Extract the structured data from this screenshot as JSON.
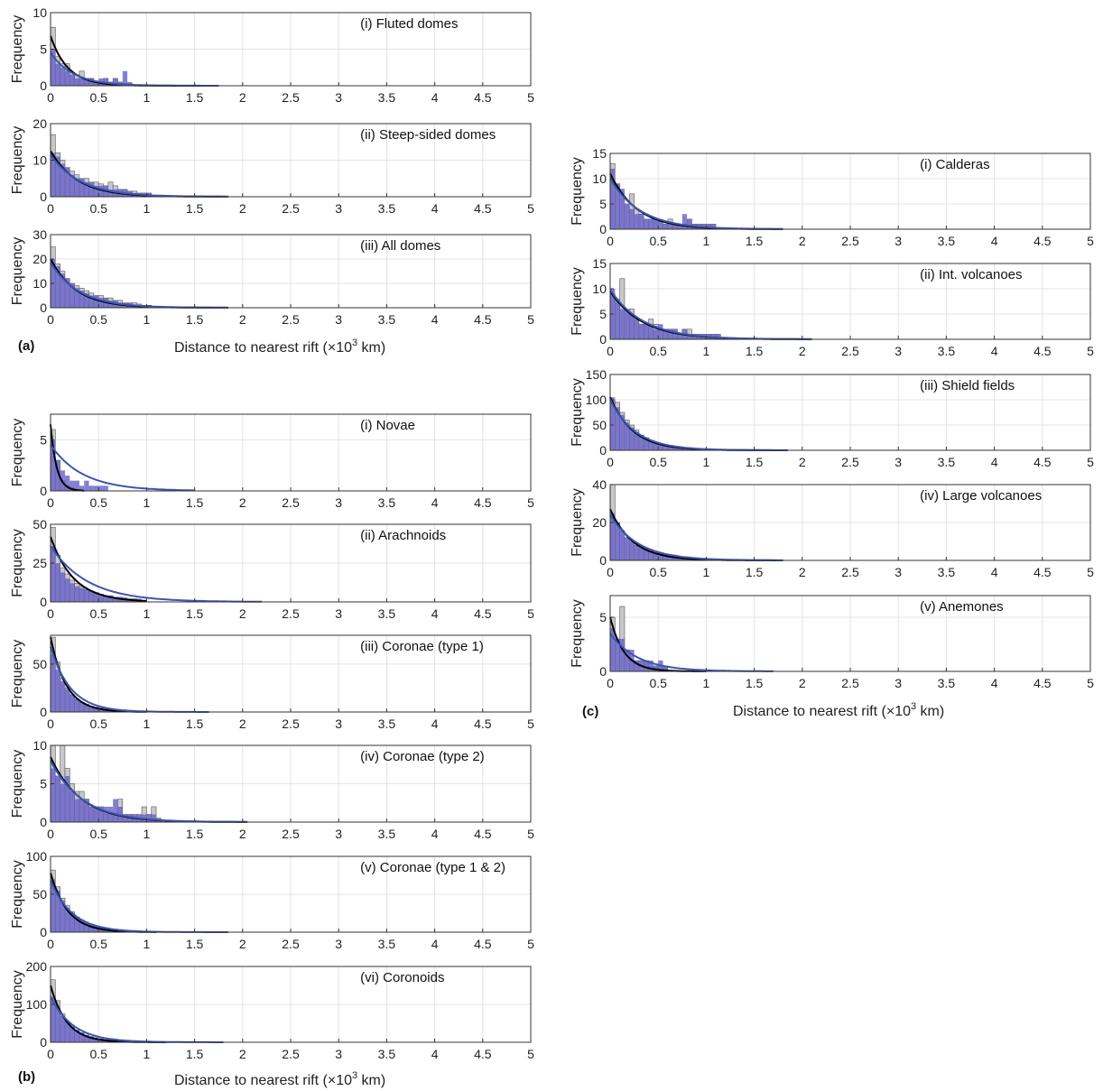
{
  "figure": {
    "panel_labels": [
      "(a)",
      "(b)",
      "(c)"
    ],
    "xlabel_text": "Distance to nearest rift (×10",
    "xlabel_sup": "3",
    "xlabel_end": " km)"
  },
  "colors": {
    "observed_bars": "#c8c8cc",
    "observed_bar_edge": "#555555",
    "model_bars": "#6a63c9",
    "observed_fit": "#000000",
    "model_fit": "#3d55b0"
  },
  "chart_data": [
    {
      "type": "bar",
      "group": "(a)",
      "title": "(i) Fluted domes",
      "ylabel": "Frequency",
      "xlim": [
        0,
        5
      ],
      "ylim": [
        0,
        10
      ],
      "yticks": [
        0,
        5,
        10
      ],
      "bin_width": 0.05,
      "observed": [
        8,
        4,
        3,
        3,
        1.5,
        1.5,
        2,
        1,
        1,
        0.5,
        0.5,
        1,
        0.5,
        1,
        0.5,
        0.3,
        0.3
      ],
      "model": [
        5,
        3,
        2.5,
        2,
        1.5,
        1,
        1,
        1,
        1,
        0.5,
        1,
        1,
        0.5,
        1,
        0.5,
        2,
        0.5
      ],
      "fit_observed": {
        "a": 6.8,
        "b": 5.6,
        "xmax": 1.75
      },
      "fit_model": {
        "a": 4.5,
        "b": 4.2,
        "xmax": 1.75
      }
    },
    {
      "type": "bar",
      "group": "(a)",
      "title": "(ii) Steep-sided domes",
      "ylabel": "Frequency",
      "xlim": [
        0,
        5
      ],
      "ylim": [
        0,
        20
      ],
      "yticks": [
        0,
        10,
        20
      ],
      "bin_width": 0.05,
      "observed": [
        17,
        12,
        10,
        8,
        7,
        6,
        5,
        5,
        4,
        4,
        3.5,
        3,
        4,
        3,
        2,
        2,
        1.5,
        1.5,
        1,
        1,
        1
      ],
      "model": [
        12,
        11,
        9,
        8,
        6,
        5,
        5,
        4,
        4,
        3,
        3,
        3,
        2,
        2,
        2,
        2,
        1.5,
        1,
        1,
        1,
        1
      ],
      "fit_observed": {
        "a": 12.5,
        "b": 3.6,
        "xmax": 1.85
      },
      "fit_model": {
        "a": 11.5,
        "b": 3.2,
        "xmax": 1.85
      }
    },
    {
      "type": "bar",
      "group": "(a)",
      "title": "(iii) All domes",
      "ylabel": "Frequency",
      "xlim": [
        0,
        5
      ],
      "ylim": [
        0,
        30
      ],
      "yticks": [
        0,
        10,
        20,
        30
      ],
      "bin_width": 0.05,
      "observed": [
        25,
        18,
        15,
        12,
        10,
        9,
        8,
        7,
        6,
        5,
        5,
        4,
        4,
        3,
        3,
        2,
        2,
        2,
        1.5,
        1,
        1
      ],
      "model": [
        20,
        17,
        14,
        12,
        10,
        8,
        7,
        6,
        5,
        5,
        4,
        4,
        3,
        3,
        2,
        2,
        2,
        1,
        1,
        1,
        1
      ],
      "fit_observed": {
        "a": 20,
        "b": 3.8,
        "xmax": 1.85
      },
      "fit_model": {
        "a": 18.5,
        "b": 3.4,
        "xmax": 1.85
      }
    },
    {
      "type": "bar",
      "group": "(b)",
      "title": "(i) Novae",
      "ylabel": "Frequency",
      "xlim": [
        0,
        5
      ],
      "ylim": [
        0,
        7.5
      ],
      "yticks": [
        0,
        5
      ],
      "bin_width": 0.05,
      "observed": [
        6,
        3,
        1,
        0.5,
        0.3
      ],
      "model": [
        5,
        3,
        2,
        1.5,
        1,
        1,
        0.5,
        1,
        0.5,
        0.5,
        0.5,
        0.5
      ],
      "fit_observed": {
        "a": 6.5,
        "b": 16,
        "xmax": 0.35
      },
      "fit_model": {
        "a": 4.5,
        "b": 3,
        "xmax": 1.5
      }
    },
    {
      "type": "bar",
      "group": "(b)",
      "title": "(ii) Arachnoids",
      "ylabel": "Frequency",
      "xlim": [
        0,
        5
      ],
      "ylim": [
        0,
        50
      ],
      "yticks": [
        0,
        25,
        50
      ],
      "bin_width": 0.05,
      "observed": [
        48,
        30,
        22,
        18,
        14,
        12,
        10,
        8,
        7,
        6,
        5,
        4,
        4,
        3,
        3,
        2,
        2,
        2,
        1,
        1
      ],
      "model": [
        36,
        25,
        19,
        15,
        12,
        10,
        9,
        8,
        7,
        6,
        5,
        4,
        4,
        3,
        3,
        3,
        2,
        2,
        2,
        1
      ],
      "fit_observed": {
        "a": 42,
        "b": 4.2,
        "xmax": 1.0
      },
      "fit_model": {
        "a": 36,
        "b": 2.6,
        "xmax": 2.2
      }
    },
    {
      "type": "bar",
      "group": "(b)",
      "title": "(iii) Coronae (type 1)",
      "ylabel": "Frequency",
      "xlim": [
        0,
        5
      ],
      "ylim": [
        0,
        80
      ],
      "yticks": [
        0,
        50
      ],
      "bin_width": 0.05,
      "observed": [
        78,
        52,
        35,
        25,
        18,
        13,
        10,
        8,
        6,
        5,
        4,
        3,
        2,
        2,
        2,
        1
      ],
      "model": [
        60,
        44,
        32,
        24,
        18,
        14,
        10,
        8,
        6,
        5,
        4,
        3,
        3,
        2,
        2,
        1
      ],
      "fit_observed": {
        "a": 78,
        "b": 6.2,
        "xmax": 1.0
      },
      "fit_model": {
        "a": 68,
        "b": 4.8,
        "xmax": 1.65
      }
    },
    {
      "type": "bar",
      "group": "(b)",
      "title": "(iv) Coronae (type 2)",
      "ylabel": "Frequency",
      "xlim": [
        0,
        5
      ],
      "ylim": [
        0,
        10
      ],
      "yticks": [
        0,
        5,
        10
      ],
      "bin_width": 0.05,
      "observed": [
        10,
        6,
        10,
        7,
        5,
        4,
        4,
        3,
        2,
        2,
        2,
        1,
        1,
        1,
        3,
        1,
        1,
        1,
        1,
        2,
        1,
        2,
        0.5
      ],
      "model": [
        7,
        6,
        5,
        6,
        4,
        3,
        3,
        3,
        2,
        2,
        2,
        2,
        2,
        3,
        2,
        1,
        1,
        1,
        1,
        1,
        1,
        1,
        0.5
      ],
      "fit_observed": {
        "a": 8.5,
        "b": 3.2,
        "xmax": 2.05
      },
      "fit_model": {
        "a": 8.0,
        "b": 3.0,
        "xmax": 2.05
      }
    },
    {
      "type": "bar",
      "group": "(b)",
      "title": "(v) Coronae (type 1 & 2)",
      "ylabel": "Frequency",
      "xlim": [
        0,
        5
      ],
      "ylim": [
        0,
        100
      ],
      "yticks": [
        0,
        50,
        100
      ],
      "bin_width": 0.05,
      "observed": [
        82,
        60,
        45,
        35,
        27,
        20,
        16,
        12,
        10,
        8,
        6,
        5,
        4,
        3,
        3,
        2,
        2,
        2,
        1,
        1
      ],
      "model": [
        70,
        55,
        42,
        32,
        25,
        20,
        16,
        12,
        10,
        8,
        6,
        5,
        4,
        4,
        3,
        3,
        2,
        2,
        1,
        1
      ],
      "fit_observed": {
        "a": 78,
        "b": 5.6,
        "xmax": 1.1
      },
      "fit_model": {
        "a": 68,
        "b": 4.4,
        "xmax": 1.85
      }
    },
    {
      "type": "bar",
      "group": "(b)",
      "title": "(vi) Coronoids",
      "ylabel": "Frequency",
      "xlim": [
        0,
        5
      ],
      "ylim": [
        0,
        200
      ],
      "yticks": [
        0,
        100,
        200
      ],
      "bin_width": 0.05,
      "observed": [
        165,
        110,
        75,
        55,
        40,
        30,
        24,
        18,
        14,
        11,
        9,
        7,
        6,
        5,
        4,
        3,
        3,
        2,
        2,
        1
      ],
      "model": [
        120,
        90,
        70,
        55,
        42,
        33,
        26,
        20,
        16,
        13,
        10,
        8,
        7,
        6,
        5,
        4,
        3,
        3,
        2,
        2
      ],
      "fit_observed": {
        "a": 150,
        "b": 6.0,
        "xmax": 1.2
      },
      "fit_model": {
        "a": 120,
        "b": 4.2,
        "xmax": 1.8
      }
    },
    {
      "type": "bar",
      "group": "(c)",
      "title": "(i) Calderas",
      "ylabel": "Frequency",
      "xlim": [
        0,
        5
      ],
      "ylim": [
        0,
        15
      ],
      "yticks": [
        0,
        5,
        10,
        15
      ],
      "bin_width": 0.05,
      "observed": [
        13,
        9,
        6,
        5,
        7,
        4,
        3,
        2,
        2,
        1.5,
        1.5,
        1,
        2,
        1,
        1,
        1,
        2,
        1,
        1,
        1,
        1,
        1
      ],
      "model": [
        12,
        9,
        8,
        5,
        4,
        3,
        3,
        2,
        2,
        2,
        2,
        1,
        1,
        1,
        1,
        3,
        2,
        1,
        1,
        1,
        1,
        1
      ],
      "fit_observed": {
        "a": 11,
        "b": 3.6,
        "xmax": 1.8
      },
      "fit_model": {
        "a": 10,
        "b": 3.2,
        "xmax": 1.8
      }
    },
    {
      "type": "bar",
      "group": "(c)",
      "title": "(ii) Int. volcanoes",
      "ylabel": "Frequency",
      "xlim": [
        0,
        5
      ],
      "ylim": [
        0,
        15
      ],
      "yticks": [
        0,
        5,
        10,
        15
      ],
      "bin_width": 0.05,
      "observed": [
        9,
        7,
        12,
        5,
        6,
        4,
        3,
        3,
        4,
        3,
        2,
        2,
        2,
        2,
        1,
        2,
        2,
        1,
        1,
        1,
        1,
        1,
        1
      ],
      "model": [
        10,
        8,
        6,
        6,
        5,
        4,
        3,
        3,
        3,
        2,
        3,
        2,
        2,
        2,
        1,
        2,
        1,
        1,
        1,
        1,
        1,
        1,
        1
      ],
      "fit_observed": {
        "a": 9.5,
        "b": 3.0,
        "xmax": 2.1
      },
      "fit_model": {
        "a": 9.8,
        "b": 2.9,
        "xmax": 2.1
      }
    },
    {
      "type": "bar",
      "group": "(c)",
      "title": "(iii) Shield fields",
      "ylabel": "Frequency",
      "xlim": [
        0,
        5
      ],
      "ylim": [
        0,
        150
      ],
      "yticks": [
        0,
        50,
        100,
        150
      ],
      "bin_width": 0.05,
      "observed": [
        100,
        95,
        75,
        60,
        50,
        40,
        30,
        25,
        20,
        16,
        12,
        10,
        8,
        6,
        5,
        4,
        3,
        3,
        2,
        2
      ],
      "model": [
        105,
        85,
        70,
        55,
        45,
        36,
        28,
        22,
        18,
        14,
        11,
        9,
        7,
        6,
        5,
        4,
        3,
        3,
        2,
        2
      ],
      "fit_observed": {
        "a": 105,
        "b": 4.2,
        "xmax": 1.85
      },
      "fit_model": {
        "a": 100,
        "b": 3.8,
        "xmax": 1.85
      }
    },
    {
      "type": "bar",
      "group": "(c)",
      "title": "(iv) Large volcanoes",
      "ylabel": "Frequency",
      "xlim": [
        0,
        5
      ],
      "ylim": [
        0,
        40
      ],
      "yticks": [
        0,
        20,
        40
      ],
      "bin_width": 0.05,
      "observed": [
        40,
        20,
        15,
        12,
        10,
        8,
        6,
        5,
        5,
        4,
        4,
        3,
        3,
        2,
        2,
        2,
        1,
        1,
        1,
        1
      ],
      "model": [
        25,
        20,
        16,
        12,
        10,
        8,
        7,
        6,
        5,
        4,
        4,
        3,
        3,
        3,
        2,
        2,
        2,
        1,
        1,
        1
      ],
      "fit_observed": {
        "a": 27,
        "b": 4.2,
        "xmax": 1.8
      },
      "fit_model": {
        "a": 24,
        "b": 3.4,
        "xmax": 1.8
      }
    },
    {
      "type": "bar",
      "group": "(c)",
      "title": "(v) Anemones",
      "ylabel": "Frequency",
      "xlim": [
        0,
        5
      ],
      "ylim": [
        0,
        7
      ],
      "yticks": [
        0,
        5
      ],
      "bin_width": 0.05,
      "observed": [
        5,
        3,
        6,
        2,
        1,
        1,
        1,
        1,
        0.5,
        0.5,
        0.5,
        0.5
      ],
      "model": [
        4,
        3,
        3,
        2,
        2,
        1,
        1,
        1,
        1,
        0.5,
        1,
        0.5
      ],
      "fit_observed": {
        "a": 5,
        "b": 7,
        "xmax": 1.0
      },
      "fit_model": {
        "a": 3.5,
        "b": 3.5,
        "xmax": 1.7
      }
    }
  ]
}
